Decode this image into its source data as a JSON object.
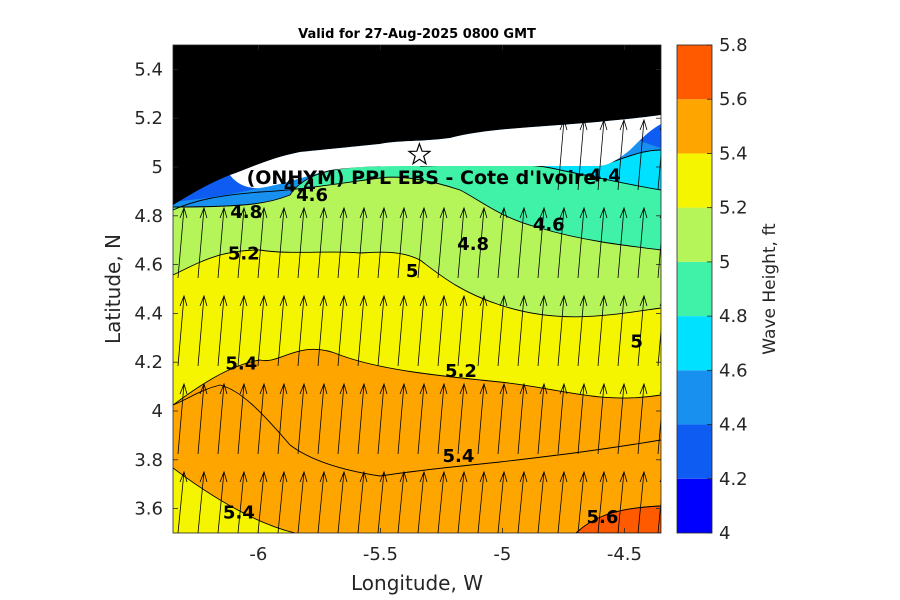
{
  "chart_data": {
    "type": "contour",
    "title": "Valid for 27-Aug-2025 0800 GMT",
    "xlabel": "Longitude, W",
    "ylabel": "Latitude, N",
    "xlim": [
      -6.35,
      -4.35
    ],
    "ylim": [
      3.5,
      5.5
    ],
    "xticks": [
      -6,
      -5.5,
      -5,
      -4.5
    ],
    "xtick_labels": [
      "-6",
      "-5.5",
      "-5",
      "-4.5"
    ],
    "yticks": [
      3.6,
      3.8,
      4,
      4.2,
      4.4,
      4.6,
      4.8,
      5,
      5.2,
      5.4
    ],
    "ytick_labels": [
      "3.6",
      "3.8",
      "4",
      "4.2",
      "4.4",
      "4.6",
      "4.8",
      "5",
      "5.2",
      "5.4"
    ],
    "colorbar": {
      "label": "Wave Height, ft",
      "range": [
        4,
        5.8
      ],
      "ticks": [
        4,
        4.2,
        4.4,
        4.6,
        4.8,
        5,
        5.2,
        5.4,
        5.6,
        5.8
      ],
      "tick_labels": [
        "4",
        "4.2",
        "4.4",
        "4.6",
        "4.8",
        "5",
        "5.2",
        "5.4",
        "5.6",
        "5.8"
      ],
      "colors": [
        "#0000ff",
        "#0f5cf2",
        "#1890f0",
        "#00e0ff",
        "#40f2a8",
        "#b5f55a",
        "#f5f500",
        "#ffa500",
        "#ff5a00"
      ]
    },
    "contour_levels": [
      4.2,
      4.4,
      4.6,
      4.8,
      5,
      5.2,
      5.4,
      5.6
    ],
    "contour_labels": [
      {
        "text": "4.4",
        "lon": -5.83,
        "lat": 4.9
      },
      {
        "text": "4.6",
        "lon": -5.78,
        "lat": 4.86
      },
      {
        "text": "4.8",
        "lon": -6.05,
        "lat": 4.79
      },
      {
        "text": "5.2",
        "lon": -6.06,
        "lat": 4.62
      },
      {
        "text": "5.4",
        "lon": -6.07,
        "lat": 4.17
      },
      {
        "text": "5.4",
        "lon": -6.08,
        "lat": 3.56
      },
      {
        "text": "4.6",
        "lon": -4.81,
        "lat": 4.74
      },
      {
        "text": "4.8",
        "lon": -5.12,
        "lat": 4.66
      },
      {
        "text": "5",
        "lon": -5.37,
        "lat": 4.55
      },
      {
        "text": "5.2",
        "lon": -5.17,
        "lat": 4.14
      },
      {
        "text": "5.4",
        "lon": -5.18,
        "lat": 3.79
      },
      {
        "text": "4.4",
        "lon": -4.58,
        "lat": 4.94
      },
      {
        "text": "5",
        "lon": -4.45,
        "lat": 4.26
      },
      {
        "text": "5.6",
        "lon": -4.59,
        "lat": 3.54
      }
    ],
    "land_color": "#000000",
    "wave_direction": "toward north-northeast",
    "site": {
      "label": "(ONHYM) PPL EBS  - Cote d'Ivoire",
      "lon": -5.34,
      "lat": 5.05,
      "marker": "star"
    }
  }
}
